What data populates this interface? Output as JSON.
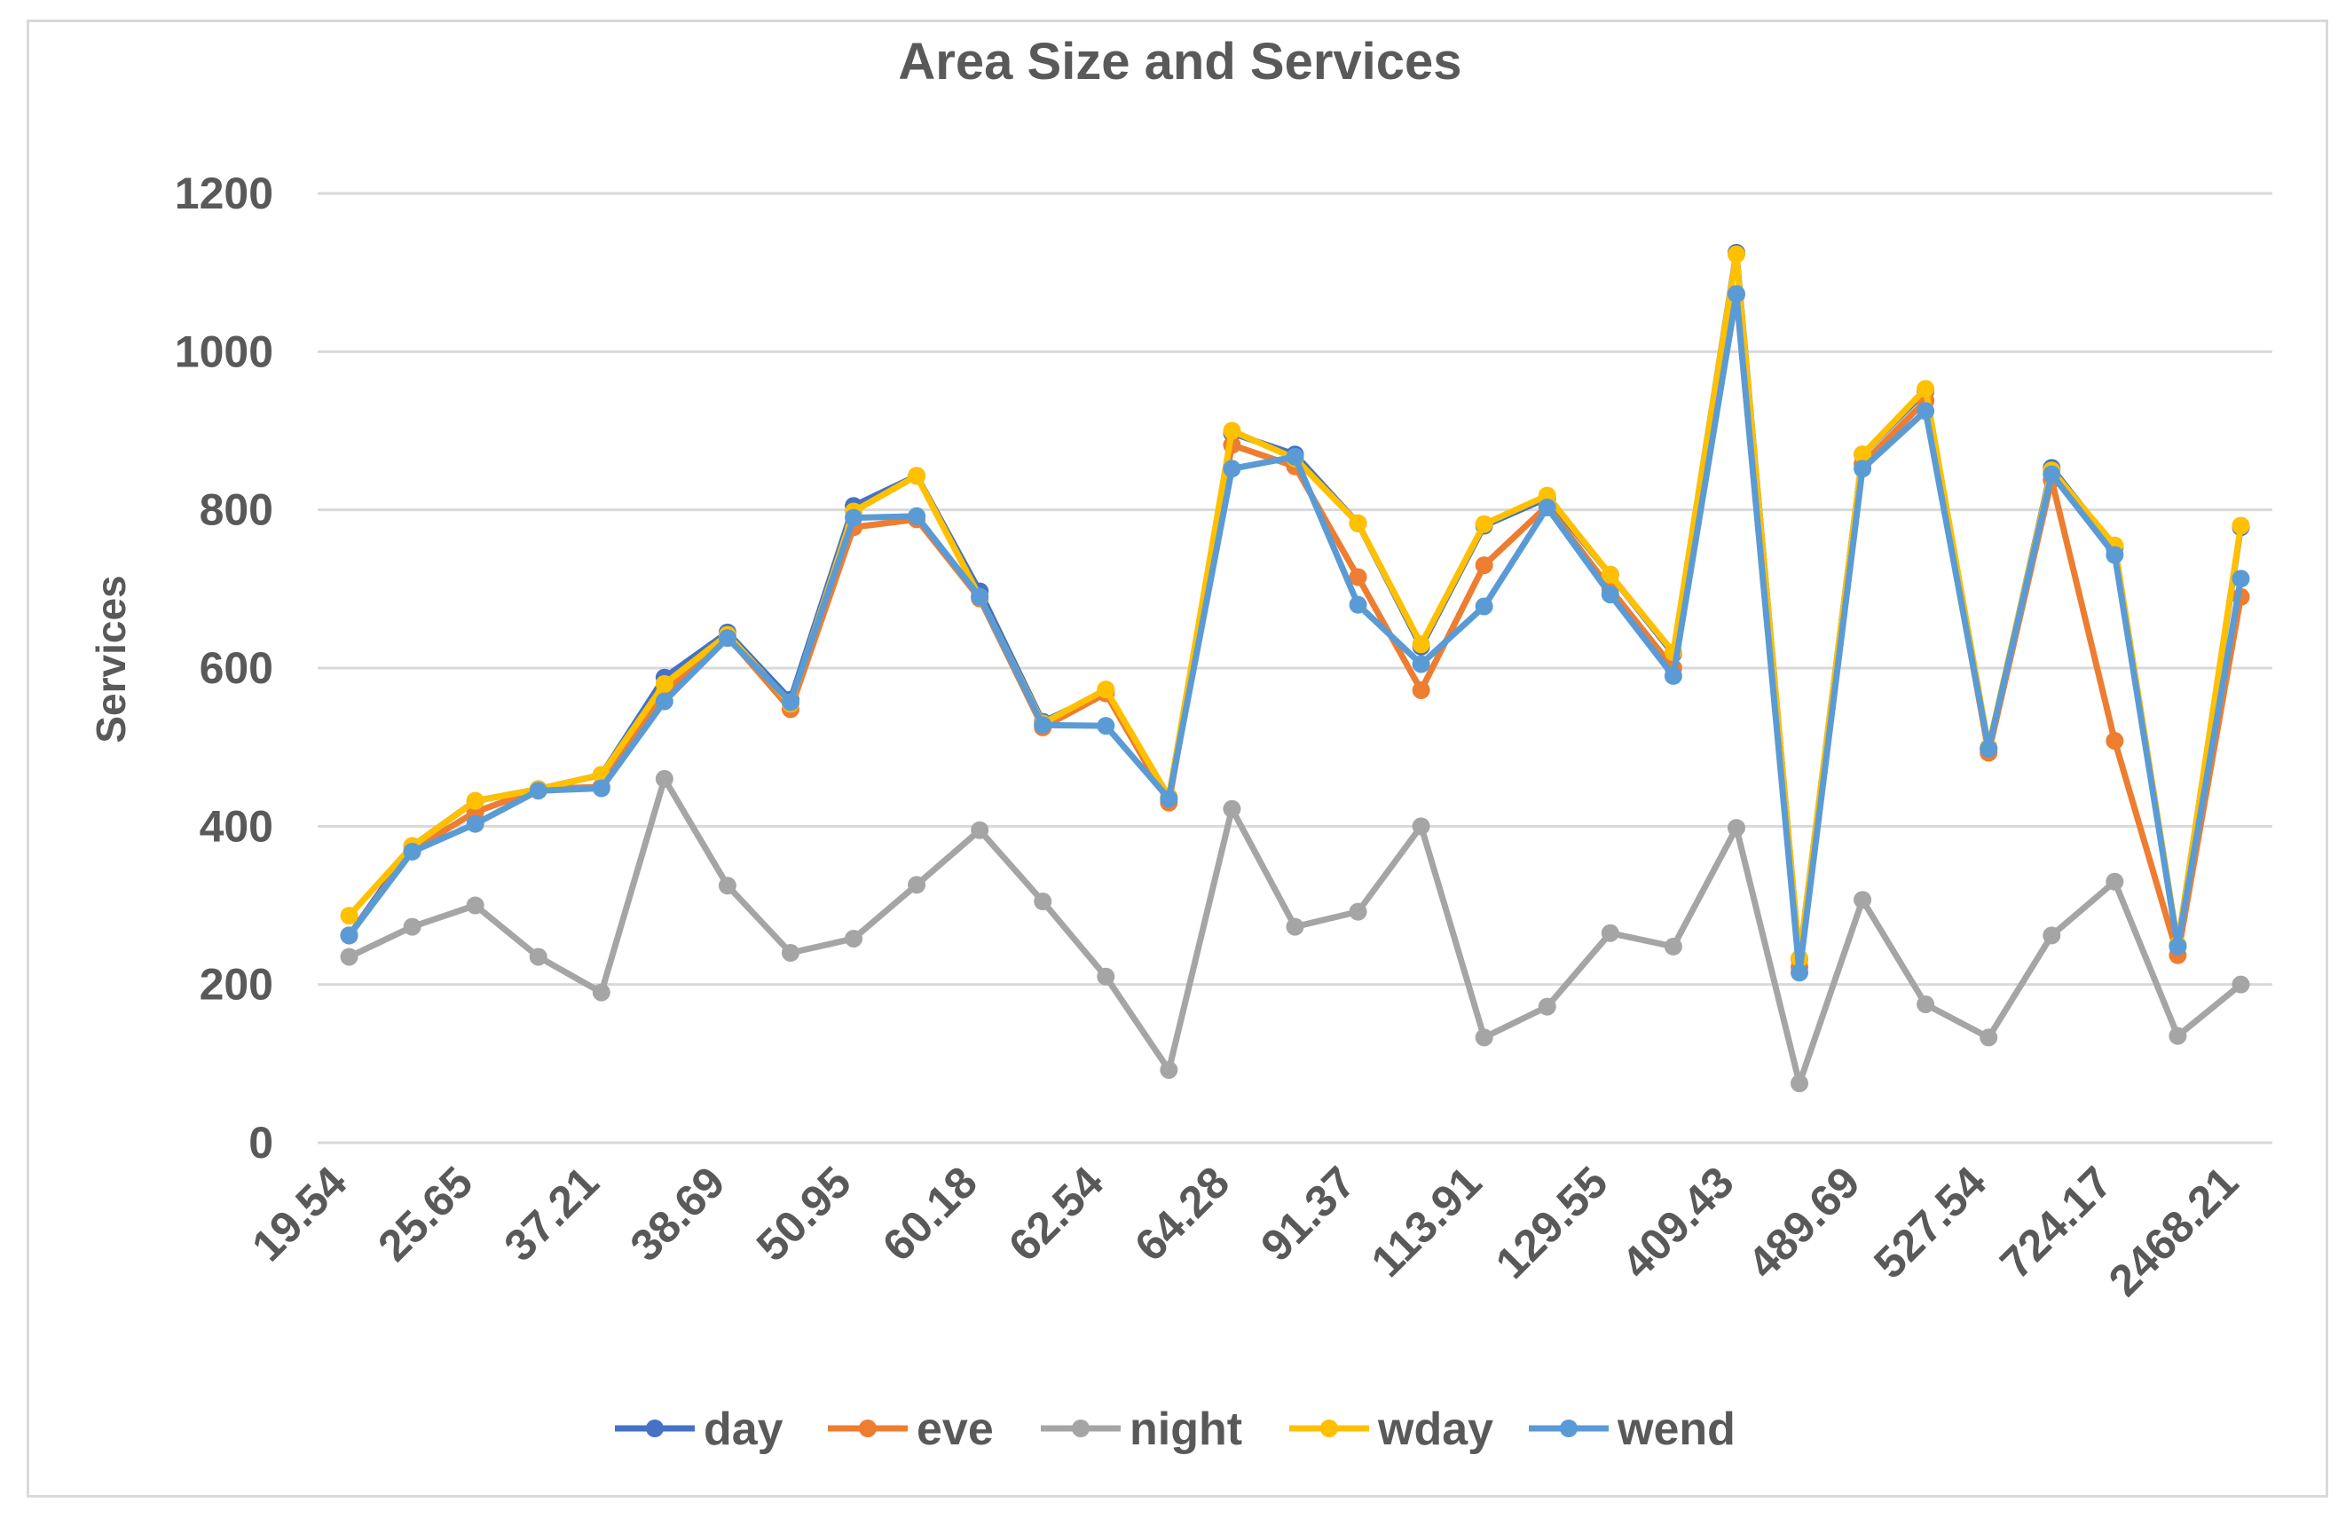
{
  "chart_data": {
    "type": "line",
    "title": "Area Size and Services",
    "xlabel": "",
    "ylabel": "Services",
    "ylim": [
      0,
      1200
    ],
    "yticks": [
      0,
      200,
      400,
      600,
      800,
      1000,
      1200
    ],
    "grid": true,
    "legend": "bottom",
    "categories": [
      "19.54",
      "",
      "25.65",
      "",
      "37.21",
      "",
      "38.69",
      "",
      "50.95",
      "",
      "60.18",
      "",
      "62.54",
      "",
      "64.28",
      "",
      "91.37",
      "",
      "113.91",
      "",
      "129.55",
      "",
      "409.43",
      "",
      "489.69",
      "",
      "527.54",
      "",
      "724.17",
      "",
      "2468.21"
    ],
    "series": [
      {
        "name": "day",
        "color": "#4472C4",
        "values": [
          262,
          375,
          432,
          447,
          465,
          588,
          645,
          560,
          805,
          843,
          697,
          532,
          570,
          435,
          897,
          870,
          783,
          627,
          780,
          815,
          718,
          618,
          1125,
          232,
          870,
          950,
          498,
          853,
          752,
          250,
          778
        ]
      },
      {
        "name": "eve",
        "color": "#ED7D31",
        "values": [
          262,
          370,
          418,
          447,
          450,
          570,
          640,
          548,
          778,
          788,
          688,
          525,
          568,
          430,
          882,
          855,
          715,
          572,
          730,
          805,
          700,
          600,
          1072,
          222,
          858,
          938,
          493,
          838,
          508,
          237,
          690
        ]
      },
      {
        "name": "night",
        "color": "#A5A5A5",
        "values": [
          235,
          273,
          300,
          235,
          190,
          460,
          325,
          240,
          258,
          326,
          395,
          305,
          210,
          92,
          422,
          273,
          292,
          400,
          133,
          172,
          265,
          248,
          398,
          75,
          307,
          175,
          133,
          262,
          330,
          135,
          200
        ]
      },
      {
        "name": "wday",
        "color": "#FFC000",
        "values": [
          287,
          375,
          432,
          447,
          465,
          580,
          642,
          555,
          798,
          843,
          690,
          530,
          573,
          437,
          900,
          865,
          783,
          630,
          782,
          818,
          718,
          620,
          1123,
          233,
          870,
          953,
          500,
          850,
          755,
          250,
          780
        ]
      },
      {
        "name": "wend",
        "color": "#5B9BD5",
        "values": [
          262,
          368,
          403,
          445,
          448,
          558,
          638,
          557,
          790,
          792,
          690,
          528,
          527,
          435,
          852,
          867,
          680,
          605,
          678,
          803,
          693,
          590,
          1073,
          215,
          852,
          925,
          498,
          845,
          743,
          248,
          713
        ]
      }
    ]
  }
}
